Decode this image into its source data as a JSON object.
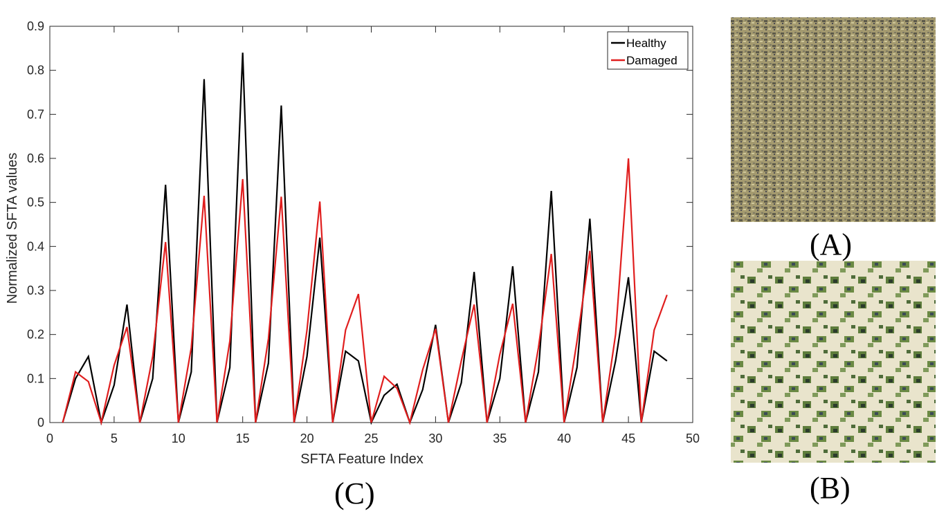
{
  "figure": {
    "panel_labels": {
      "a": "(A)",
      "b": "(B)",
      "c": "(C)"
    }
  },
  "colors": {
    "healthy": "#000000",
    "damaged": "#e01e1e",
    "axis": "#262626"
  },
  "chart_data": {
    "type": "line",
    "title": "",
    "xlabel": "SFTA Feature Index",
    "ylabel": "Normalized SFTA values",
    "xlim": [
      0,
      50
    ],
    "ylim": [
      0,
      0.9
    ],
    "xticks": [
      0,
      5,
      10,
      15,
      20,
      25,
      30,
      35,
      40,
      45,
      50
    ],
    "yticks": [
      0,
      0.1,
      0.2,
      0.3,
      0.4,
      0.5,
      0.6,
      0.7,
      0.8,
      0.9
    ],
    "grid": false,
    "legend_position": "top-right",
    "x": [
      1,
      2,
      3,
      4,
      5,
      6,
      7,
      8,
      9,
      10,
      11,
      12,
      13,
      14,
      15,
      16,
      17,
      18,
      19,
      20,
      21,
      22,
      23,
      24,
      25,
      26,
      27,
      28,
      29,
      30,
      31,
      32,
      33,
      34,
      35,
      36,
      37,
      38,
      39,
      40,
      41,
      42,
      43,
      44,
      45,
      46,
      47,
      48
    ],
    "series": [
      {
        "name": "Healthy",
        "color": "#000000",
        "values": [
          0,
          0.1,
          0.15,
          0,
          0.085,
          0.268,
          0,
          0.1,
          0.54,
          0,
          0.115,
          0.78,
          0,
          0.125,
          0.84,
          0,
          0.135,
          0.72,
          0,
          0.15,
          0.42,
          0,
          0.162,
          0.14,
          0,
          0.062,
          0.087,
          0,
          0.075,
          0.222,
          0,
          0.09,
          0.342,
          0,
          0.1,
          0.355,
          0,
          0.115,
          0.526,
          0,
          0.125,
          0.463,
          0,
          0.14,
          0.33,
          0,
          0.162,
          0.14
        ]
      },
      {
        "name": "Damaged",
        "color": "#e01e1e",
        "values": [
          0,
          0.115,
          0.093,
          0,
          0.13,
          0.217,
          0,
          0.15,
          0.41,
          0,
          0.17,
          0.515,
          0,
          0.185,
          0.553,
          0,
          0.19,
          0.513,
          0,
          0.21,
          0.502,
          0,
          0.21,
          0.292,
          0,
          0.105,
          0.078,
          0,
          0.12,
          0.213,
          0,
          0.14,
          0.268,
          0,
          0.155,
          0.27,
          0,
          0.17,
          0.383,
          0,
          0.185,
          0.39,
          0,
          0.2,
          0.6,
          0,
          0.21,
          0.29
        ]
      }
    ]
  }
}
